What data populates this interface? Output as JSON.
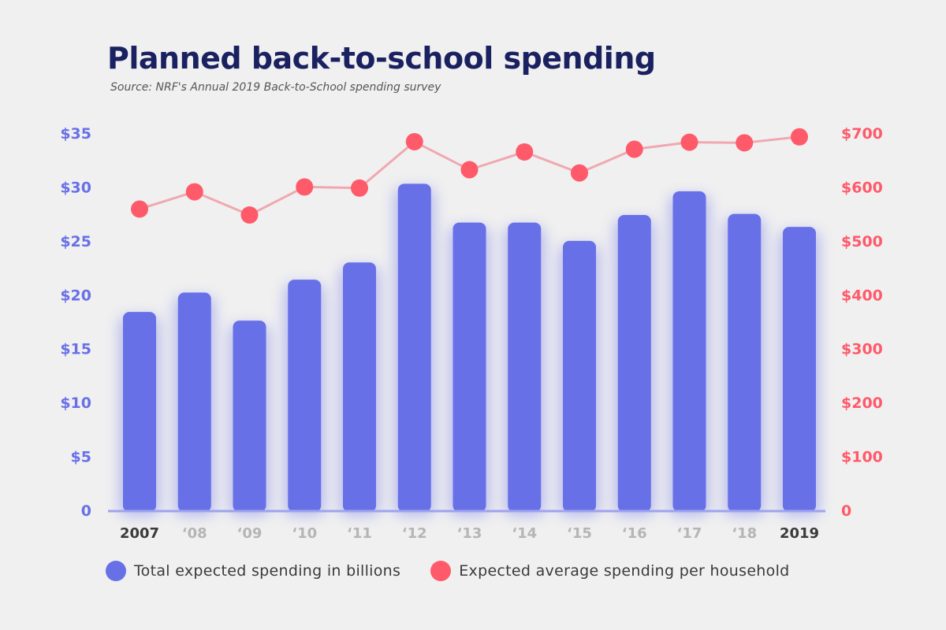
{
  "title": "Planned back-to-school spending",
  "subtitle": "Source: NRF's Annual 2019 Back-to-School spending survey",
  "colors": {
    "bar": "#6870e8",
    "line": "#f0a8b0",
    "dot": "#ff5a6a",
    "left_axis": "#6870e8",
    "right_axis": "#ff5a6a",
    "baseline": "#9ea3ee"
  },
  "chart_data": {
    "type": "bar",
    "categories": [
      "2007",
      "‘08",
      "‘09",
      "‘10",
      "‘11",
      "‘12",
      "‘13",
      "‘14",
      "‘15",
      "‘16",
      "‘17",
      "‘18",
      "2019"
    ],
    "highlighted_categories": [
      "2007",
      "2019"
    ],
    "series": [
      {
        "name": "Total expected spending in billions",
        "type": "bar",
        "axis": "left",
        "values": [
          18.4,
          20.2,
          17.6,
          21.4,
          23.0,
          30.3,
          26.7,
          26.7,
          25.0,
          27.4,
          29.6,
          27.5,
          26.3
        ]
      },
      {
        "name": "Expected average spending per household",
        "type": "line",
        "axis": "right",
        "values": [
          559,
          591,
          548,
          600,
          598,
          684,
          632,
          665,
          626,
          670,
          683,
          682,
          693
        ]
      }
    ],
    "left_axis": {
      "ticks": [
        "0",
        "$5",
        "$10",
        "$15",
        "$20",
        "$25",
        "$30",
        "$35"
      ],
      "range": [
        0,
        35
      ]
    },
    "right_axis": {
      "ticks": [
        "0",
        "$100",
        "$200",
        "$300",
        "$400",
        "$500",
        "$600",
        "$700"
      ],
      "range": [
        0,
        700
      ]
    },
    "grid": false,
    "legend_position": "bottom"
  }
}
